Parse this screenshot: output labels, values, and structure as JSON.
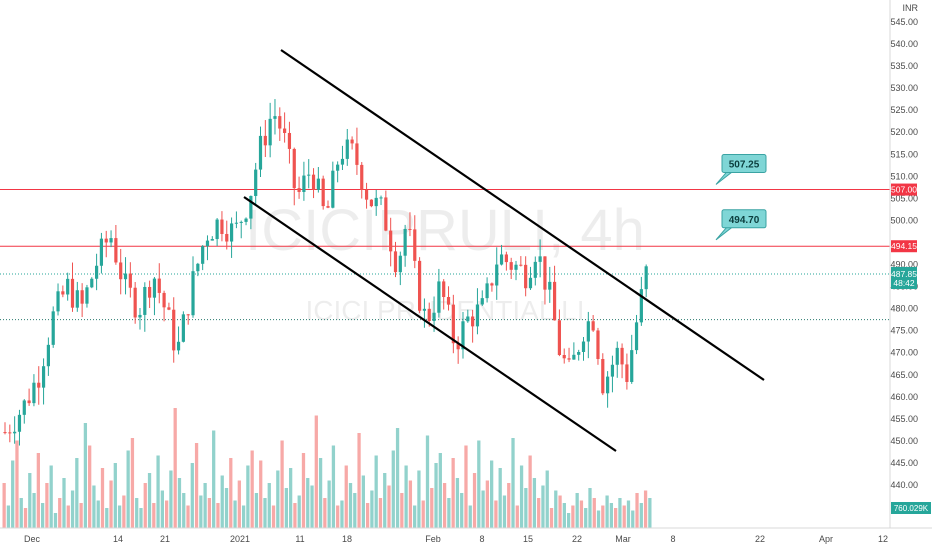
{
  "chart_data": {
    "type": "candlestick",
    "symbol_watermark": "ICICIPRULI, 4h",
    "watermark_sub": "ICICI PRUDENTIAL LI",
    "currency": "INR",
    "ylim": [
      436,
      547
    ],
    "y_ticks": [
      545,
      540,
      535,
      530,
      525,
      520,
      515,
      510,
      505,
      500,
      490,
      485,
      480,
      475,
      470,
      465,
      460,
      455,
      450,
      445,
      440
    ],
    "x_tick_labels": [
      "Dec",
      "14",
      "21",
      "2021",
      "11",
      "18",
      "Feb",
      "8",
      "15",
      "22",
      "Mar",
      "8",
      "22",
      "Apr",
      "12"
    ],
    "last_price": "487.85",
    "countdown": "48:42",
    "volume_label": "760.029K",
    "levels": [
      {
        "price": 507.0,
        "label": "507.00",
        "color": "#f23645"
      },
      {
        "price": 494.15,
        "label": "494.15",
        "color": "#f23645"
      }
    ],
    "callouts": [
      {
        "text": "507.25",
        "price": 507.25
      },
      {
        "text": "494.70",
        "price": 494.7
      }
    ],
    "dotted_levels": [
      487.85,
      477.5
    ],
    "trendlines": [
      {
        "name": "upper-channel",
        "from": [
          0,
          539
        ],
        "to": [
          1,
          463.5
        ]
      },
      {
        "name": "lower-channel",
        "from": [
          0,
          505
        ],
        "to": [
          1,
          447.5
        ]
      }
    ],
    "colors": {
      "up": "#26a69a",
      "down": "#ef5350",
      "level": "#f23645",
      "callout_bg": "#7fd6d6",
      "price_badge": "#26a69a"
    },
    "waypoints": [
      [
        0,
        452
      ],
      [
        8,
        458
      ],
      [
        14,
        465
      ],
      [
        20,
        478
      ],
      [
        26,
        485
      ],
      [
        32,
        480
      ],
      [
        38,
        490
      ],
      [
        44,
        497
      ],
      [
        50,
        485
      ],
      [
        56,
        480
      ],
      [
        62,
        488
      ],
      [
        68,
        478
      ],
      [
        72,
        470
      ],
      [
        78,
        485
      ],
      [
        84,
        497
      ],
      [
        90,
        500
      ],
      [
        96,
        497
      ],
      [
        102,
        505
      ],
      [
        106,
        515
      ],
      [
        112,
        525
      ],
      [
        116,
        520
      ],
      [
        122,
        505
      ],
      [
        128,
        512
      ],
      [
        134,
        500
      ],
      [
        140,
        516
      ],
      [
        146,
        515
      ],
      [
        152,
        505
      ],
      [
        158,
        502
      ],
      [
        164,
        490
      ],
      [
        168,
        500
      ],
      [
        172,
        485
      ],
      [
        176,
        477
      ],
      [
        182,
        485
      ],
      [
        188,
        472
      ],
      [
        194,
        478
      ],
      [
        200,
        480
      ],
      [
        206,
        492
      ],
      [
        212,
        490
      ],
      [
        218,
        488
      ],
      [
        222,
        494
      ],
      [
        228,
        482
      ],
      [
        232,
        470
      ],
      [
        236,
        465
      ],
      [
        242,
        476
      ],
      [
        246,
        478
      ],
      [
        250,
        463
      ],
      [
        256,
        470
      ],
      [
        260,
        465
      ],
      [
        264,
        477
      ],
      [
        268,
        488
      ]
    ],
    "volume_bars": [
      18,
      9,
      27,
      35,
      12,
      8,
      22,
      14,
      30,
      10,
      18,
      25,
      6,
      12,
      20,
      9,
      15,
      28,
      10,
      42,
      33,
      17,
      11,
      24,
      8,
      19,
      26,
      9,
      13,
      31,
      36,
      12,
      8,
      18,
      22,
      10,
      29,
      15,
      11,
      23,
      48,
      20,
      14,
      9,
      26,
      34,
      13,
      18,
      12,
      39,
      10,
      21,
      16,
      28,
      11,
      19,
      9,
      25,
      31,
      14,
      27,
      12,
      18,
      9,
      23,
      35,
      16,
      24,
      10,
      13,
      30,
      20,
      17,
      45,
      28,
      12,
      19,
      33,
      9,
      11,
      25,
      18,
      14,
      38,
      21,
      10,
      15,
      29,
      12,
      22,
      17,
      31,
      40,
      14,
      25,
      19,
      9,
      23,
      11,
      37,
      16,
      26,
      30,
      18,
      12,
      28,
      20,
      14,
      33,
      9,
      22,
      35,
      15,
      19,
      27,
      11,
      24,
      13,
      18,
      36,
      9,
      25,
      16,
      29,
      20,
      12,
      17,
      23,
      8,
      15,
      13,
      10,
      6,
      9,
      14,
      11,
      8,
      16,
      12,
      7,
      9,
      13,
      10,
      8,
      12,
      9,
      11,
      7,
      14,
      10,
      15,
      12
    ]
  }
}
